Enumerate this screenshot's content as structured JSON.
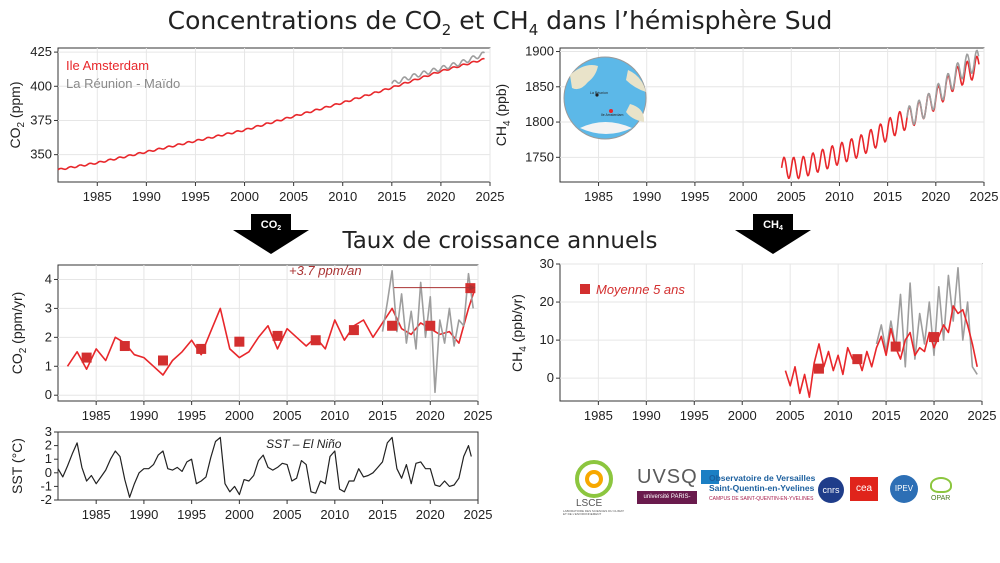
{
  "page": {
    "title_parts": [
      "Concentrations de CO",
      "2",
      " et CH",
      "4",
      " dans l’hémisphère Sud"
    ],
    "subtitle": "Taux de croissance annuels",
    "arrow_labels": [
      [
        "CO",
        "2"
      ],
      [
        "CH",
        "4"
      ]
    ],
    "map": {
      "label_1": "Ile Amsterdam",
      "label_2": "La Réunion"
    }
  },
  "logos": {
    "lsce": "LSCE",
    "lsce_sub": "LABORATOIRE DES SCIENCES DU CLIMAT ET DE L'ENVIRONNEMENT",
    "uvsq": "UVSQ",
    "uvsq_sub": "université PARIS-SACLAY",
    "osu_title": "Observatoire de Versailles Saint-Quentin-en-Yvelines",
    "osu_sub": "CAMPUS DE SAINT-QUENTIN-EN-YVELINES",
    "cnrs": "cnrs",
    "cea": "cea",
    "ipev": "IPEV",
    "opar": "OPAR"
  },
  "chart_data": [
    {
      "type": "line",
      "title": "",
      "ylabel_parts": [
        "CO",
        "2",
        " (ppm)"
      ],
      "xlim": [
        1981,
        2025
      ],
      "ylim": [
        330,
        428
      ],
      "yticks": [
        350,
        375,
        400,
        425
      ],
      "xticks": [
        1985,
        1990,
        1995,
        2000,
        2005,
        2010,
        2015,
        2020,
        2025
      ],
      "grid": true,
      "legend": "top-left",
      "series": [
        {
          "name": "Ile Amsterdam",
          "color": "#e8272b",
          "seasonal": 0.6,
          "x": [
            1981,
            1985,
            1990,
            1995,
            2000,
            2005,
            2010,
            2015,
            2020,
            2024.5
          ],
          "y": [
            339,
            344,
            352,
            360,
            368,
            378,
            388,
            399,
            411,
            420
          ]
        },
        {
          "name": "La Réunion - Maïdo",
          "color": "#9e9e9e",
          "seasonal": 1.6,
          "x": [
            2015,
            2017,
            2020,
            2022,
            2024.5
          ],
          "y": [
            402,
            407,
            413,
            417,
            424
          ]
        }
      ]
    },
    {
      "type": "line",
      "title": "",
      "ylabel_parts": [
        "CH",
        "4",
        " (ppb)"
      ],
      "xlim": [
        1981,
        2025
      ],
      "ylim": [
        1715,
        1905
      ],
      "yticks": [
        1750,
        1800,
        1850,
        1900
      ],
      "xticks": [
        1985,
        1990,
        1995,
        2000,
        2005,
        2010,
        2015,
        2020,
        2025
      ],
      "grid": true,
      "series": [
        {
          "name": "",
          "color": "#e8272b",
          "seasonal": 15,
          "x": [
            2004,
            2006,
            2008,
            2010,
            2012,
            2014,
            2016,
            2018,
            2020,
            2022,
            2024.5
          ],
          "y": [
            1735,
            1735,
            1745,
            1755,
            1765,
            1780,
            1798,
            1812,
            1833,
            1862,
            1880
          ]
        },
        {
          "name": "",
          "color": "#9e9e9e",
          "seasonal": 15,
          "x": [
            2017,
            2019,
            2021,
            2023,
            2024.5
          ],
          "y": [
            1806,
            1822,
            1850,
            1880,
            1888
          ]
        }
      ]
    },
    {
      "type": "line",
      "title": "",
      "ylabel_parts": [
        "CO",
        "2",
        " (ppm/yr)"
      ],
      "xlim": [
        1981,
        2025
      ],
      "ylim": [
        -0.2,
        4.5
      ],
      "yticks": [
        0,
        1,
        2,
        3,
        4
      ],
      "xticks": [
        1985,
        1990,
        1995,
        2000,
        2005,
        2010,
        2015,
        2020,
        2025
      ],
      "grid": true,
      "annotation": "+3.7 ppm/an",
      "series": [
        {
          "name": "",
          "color": "#e8272b",
          "x": [
            1982,
            1983,
            1984,
            1985,
            1986,
            1987,
            1988,
            1989,
            1990,
            1991,
            1992,
            1993,
            1994,
            1995,
            1996,
            1997,
            1998,
            1999,
            2000,
            2001,
            2002,
            2003,
            2004,
            2005,
            2006,
            2007,
            2008,
            2009,
            2010,
            2011,
            2012,
            2013,
            2014,
            2015,
            2016,
            2017,
            2018,
            2019,
            2020,
            2021,
            2022,
            2023,
            2024,
            2024.6
          ],
          "y": [
            1.0,
            1.5,
            0.9,
            1.6,
            1.2,
            2.0,
            1.8,
            1.4,
            1.3,
            1.0,
            0.7,
            1.2,
            1.5,
            1.9,
            1.4,
            2.2,
            3.0,
            1.6,
            1.3,
            1.5,
            2.0,
            2.4,
            1.6,
            2.3,
            2.0,
            1.7,
            2.0,
            1.6,
            2.6,
            1.9,
            2.4,
            2.6,
            2.0,
            2.5,
            3.0,
            2.3,
            2.1,
            2.5,
            2.3,
            2.1,
            2.2,
            1.8,
            3.0,
            3.6
          ]
        },
        {
          "name": "",
          "color": "#9e9e9e",
          "x": [
            2015,
            2015.5,
            2016,
            2016.5,
            2017,
            2017.5,
            2018,
            2018.5,
            2019,
            2019.5,
            2020,
            2020.5,
            2021,
            2021.5,
            2022,
            2022.5,
            2023,
            2023.5,
            2024,
            2024.5
          ],
          "y": [
            2.2,
            3.2,
            4.3,
            2.2,
            3.5,
            1.8,
            2.9,
            1.6,
            3.9,
            2.0,
            3.4,
            0.1,
            2.6,
            1.8,
            3.0,
            1.7,
            2.6,
            2.4,
            4.2,
            3.0
          ]
        },
        {
          "name": "Moyenne 5 ans",
          "color": "#d32f2f",
          "marker": "square",
          "x": [
            1984,
            1988,
            1992,
            1996,
            2000,
            2004,
            2008,
            2012,
            2016,
            2020,
            2024.2
          ],
          "y": [
            1.3,
            1.7,
            1.2,
            1.6,
            1.85,
            2.05,
            1.9,
            2.25,
            2.4,
            2.4,
            3.7
          ]
        }
      ]
    },
    {
      "type": "line",
      "title": "",
      "ylabel_parts": [
        "CH",
        "4",
        " (ppb/yr)"
      ],
      "xlim": [
        1981,
        2025
      ],
      "ylim": [
        -6,
        30
      ],
      "yticks": [
        0,
        10,
        20,
        30
      ],
      "xticks": [
        1985,
        1990,
        1995,
        2000,
        2005,
        2010,
        2015,
        2020,
        2025
      ],
      "grid": true,
      "legend": "top-left",
      "series": [
        {
          "name": "",
          "color": "#9e9e9e",
          "x": [
            2014,
            2014.5,
            2015,
            2015.5,
            2016,
            2016.5,
            2017,
            2017.5,
            2018,
            2018.5,
            2019,
            2019.5,
            2020,
            2020.5,
            2021,
            2021.5,
            2022,
            2022.5,
            2023,
            2023.5,
            2024,
            2024.5
          ],
          "y": [
            9,
            14,
            7,
            15,
            8,
            22,
            3,
            25,
            5,
            17,
            9,
            20,
            6,
            24,
            10,
            27,
            15,
            29,
            10,
            20,
            3,
            1
          ]
        },
        {
          "name": "",
          "color": "#e8272b",
          "x": [
            2004.5,
            2005,
            2005.5,
            2006,
            2006.5,
            2007,
            2007.5,
            2008,
            2008.5,
            2009,
            2009.5,
            2010,
            2010.5,
            2011,
            2011.5,
            2012,
            2012.5,
            2013,
            2013.5,
            2014,
            2014.5,
            2015,
            2015.5,
            2016,
            2016.5,
            2017,
            2017.5,
            2018,
            2018.5,
            2019,
            2019.5,
            2020,
            2020.5,
            2021,
            2021.5,
            2022,
            2022.5,
            2023,
            2023.5,
            2024,
            2024.5
          ],
          "y": [
            2,
            -2,
            3,
            -4,
            1,
            -5,
            4,
            9,
            3,
            7,
            2,
            6,
            1,
            8,
            5,
            6,
            2,
            7,
            3,
            8,
            11,
            6,
            13,
            8,
            5,
            10,
            12,
            6,
            8,
            7,
            12,
            8,
            11,
            14,
            12,
            19,
            17,
            18,
            14,
            9,
            3
          ]
        },
        {
          "name": "Moyenne 5 ans",
          "color": "#d32f2f",
          "marker": "square",
          "x": [
            2008,
            2012,
            2016,
            2020
          ],
          "y": [
            2.5,
            5.0,
            8.3,
            10.8
          ]
        }
      ]
    },
    {
      "type": "line",
      "title": "",
      "annotation": "SST – El Niño",
      "ylabel": "SST (°C)",
      "xlim": [
        1981,
        2025
      ],
      "ylim": [
        -2,
        3
      ],
      "yticks": [
        -2,
        -1,
        0,
        1,
        2,
        3
      ],
      "xticks": [
        1985,
        1990,
        1995,
        2000,
        2005,
        2010,
        2015,
        2020,
        2025
      ],
      "grid": false,
      "series": [
        {
          "name": "",
          "color": "#222222",
          "x": [
            1981,
            1981.5,
            1982,
            1982.5,
            1983,
            1983.5,
            1984,
            1984.5,
            1985,
            1985.5,
            1986,
            1986.5,
            1987,
            1987.5,
            1988,
            1988.5,
            1989,
            1989.5,
            1990,
            1990.5,
            1991,
            1991.5,
            1992,
            1992.5,
            1993,
            1993.5,
            1994,
            1994.5,
            1995,
            1995.5,
            1996,
            1996.5,
            1997,
            1997.5,
            1998,
            1998.5,
            1999,
            1999.5,
            2000,
            2000.5,
            2001,
            2001.5,
            2002,
            2002.5,
            2003,
            2003.5,
            2004,
            2004.5,
            2005,
            2005.5,
            2006,
            2006.5,
            2007,
            2007.5,
            2008,
            2008.5,
            2009,
            2009.5,
            2010,
            2010.5,
            2011,
            2011.5,
            2012,
            2012.5,
            2013,
            2013.5,
            2014,
            2014.5,
            2015,
            2015.5,
            2016,
            2016.5,
            2017,
            2017.5,
            2018,
            2018.5,
            2019,
            2019.5,
            2020,
            2020.5,
            2021,
            2021.5,
            2022,
            2022.5,
            2023,
            2023.5,
            2024,
            2024.3
          ],
          "y": [
            0.3,
            -0.3,
            0.5,
            1.4,
            2.2,
            0.4,
            -0.6,
            -0.2,
            -0.8,
            -0.3,
            0.2,
            1.0,
            1.6,
            1.2,
            -0.5,
            -1.8,
            -0.8,
            0.0,
            0.3,
            0.3,
            0.6,
            1.3,
            1.6,
            0.3,
            0.2,
            0.4,
            0.1,
            0.8,
            1.0,
            -0.8,
            -0.6,
            -0.3,
            1.1,
            2.3,
            2.6,
            -0.8,
            -1.4,
            -1.0,
            -1.6,
            -0.5,
            -0.6,
            -0.2,
            0.9,
            1.3,
            0.4,
            0.2,
            0.4,
            0.7,
            0.6,
            -0.6,
            -0.4,
            0.9,
            0.6,
            -1.4,
            -1.5,
            -0.6,
            -0.8,
            1.2,
            1.6,
            -1.2,
            -1.4,
            -0.6,
            -0.6,
            0.3,
            -0.3,
            -0.2,
            0.0,
            0.4,
            0.8,
            2.2,
            2.6,
            0.3,
            -0.4,
            0.6,
            -0.8,
            0.7,
            0.8,
            0.3,
            0.3,
            -0.9,
            -1.0,
            -0.6,
            -1.0,
            -0.9,
            -0.4,
            1.2,
            2.0,
            1.2
          ]
        }
      ]
    }
  ]
}
